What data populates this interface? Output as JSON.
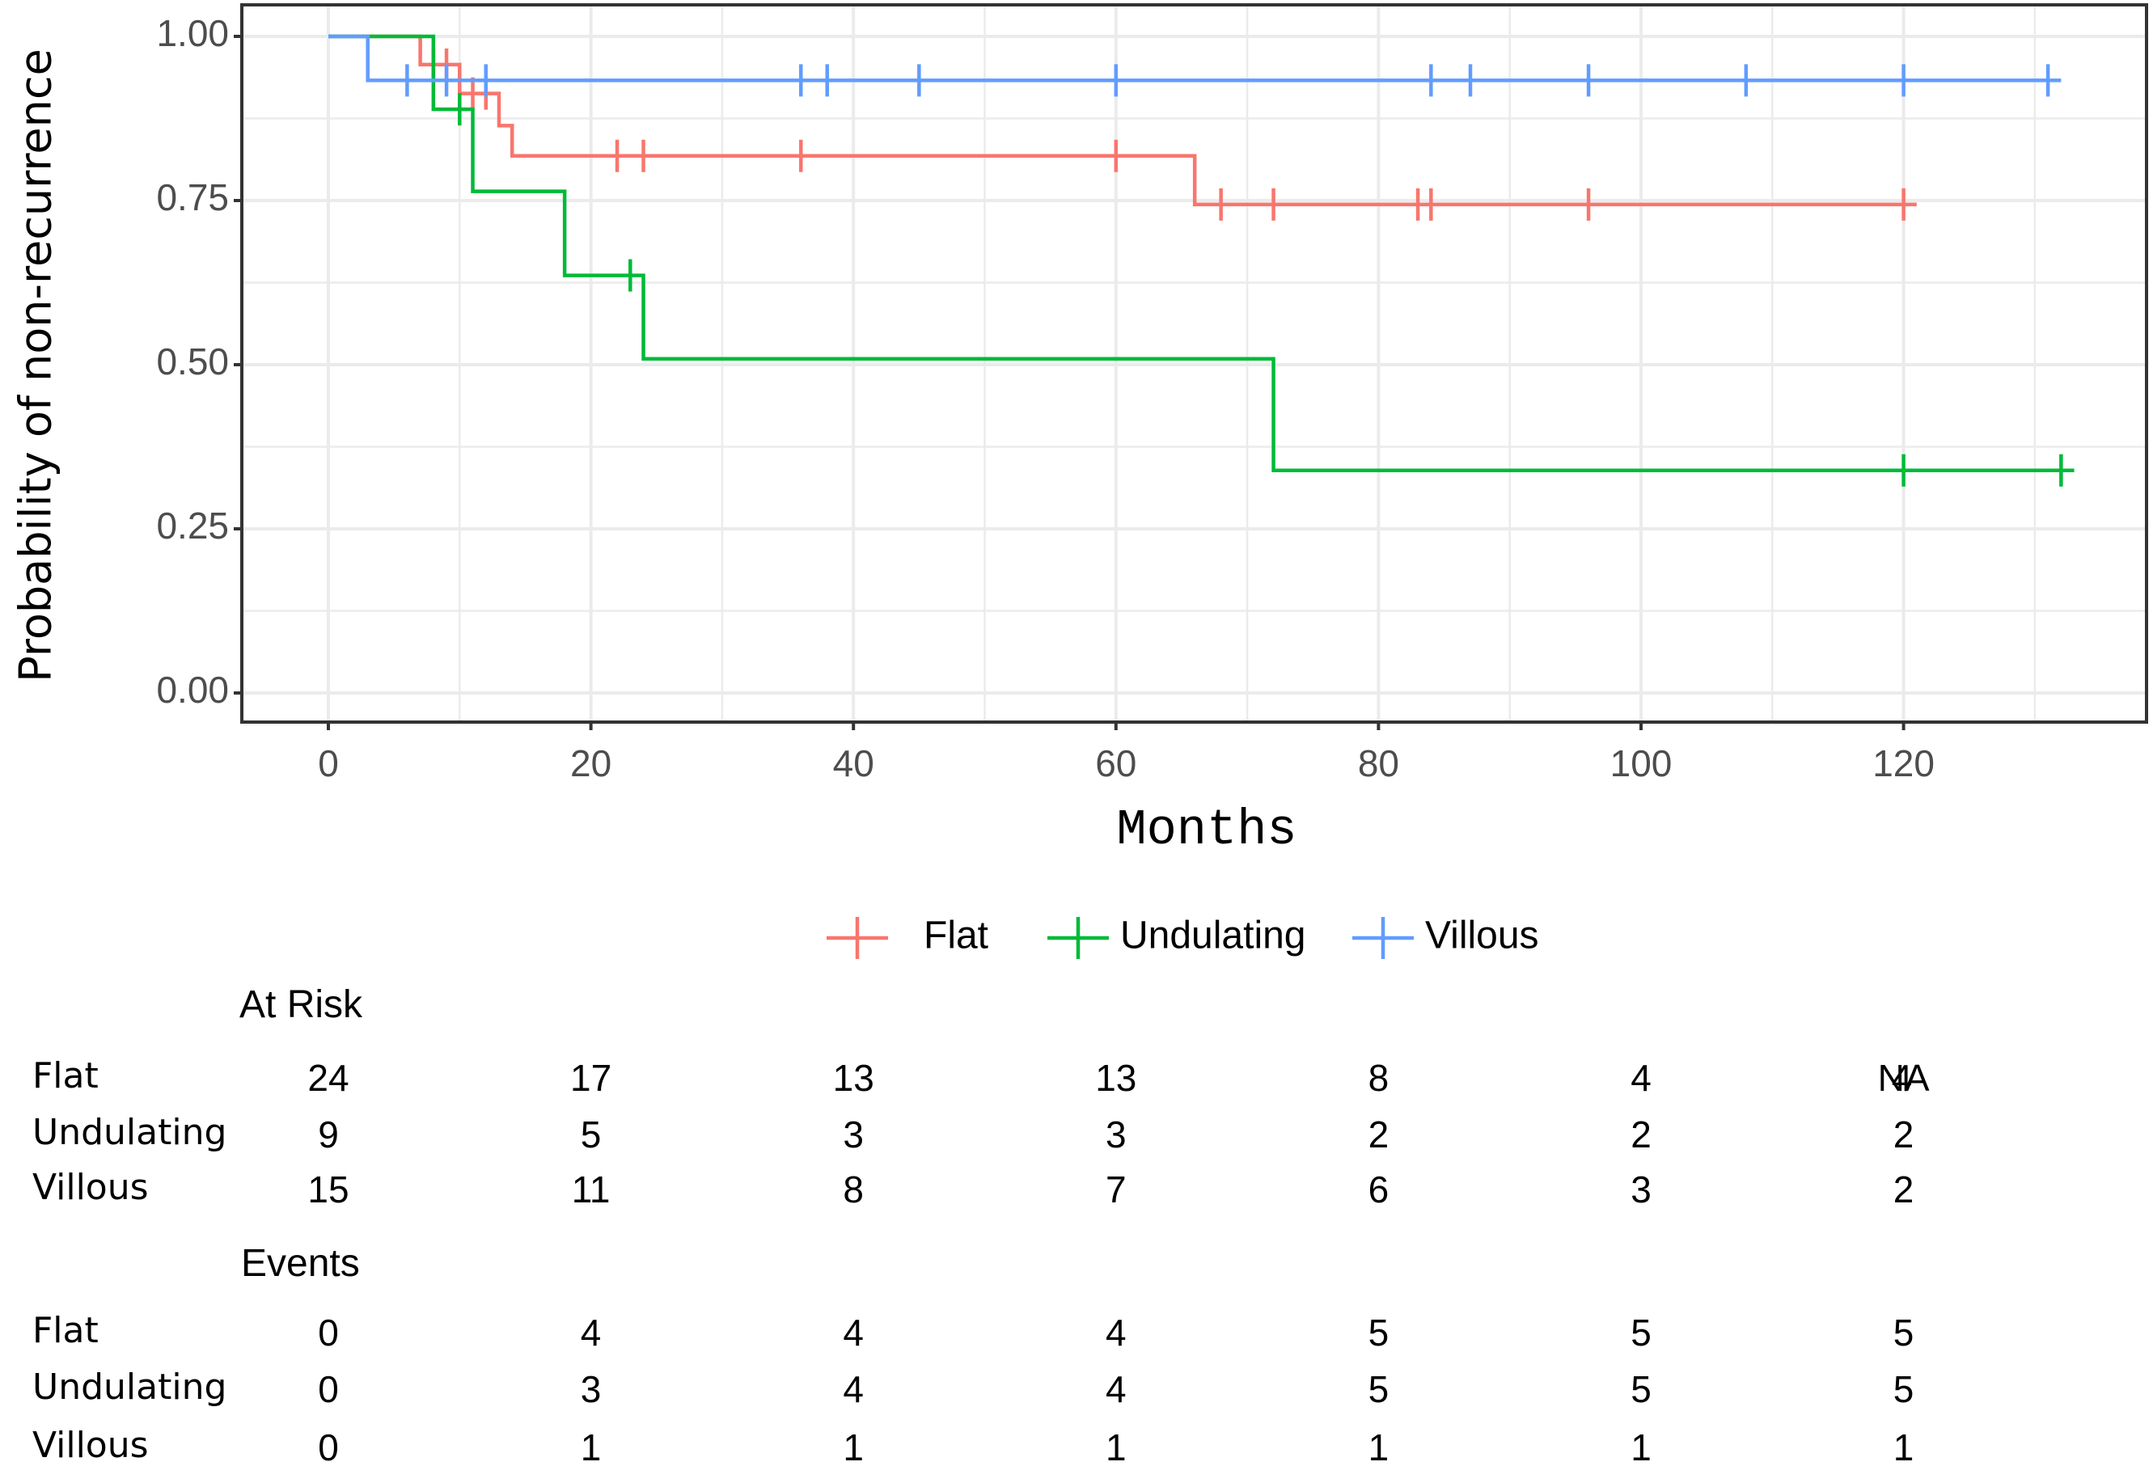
{
  "chart_data": {
    "type": "line",
    "subtype": "kaplan-meier step",
    "title": "",
    "xlabel": "Months",
    "ylabel": "Probability of non-recurrence",
    "xlim": [
      -6.6,
      138
    ],
    "ylim": [
      -0.045,
      1.05
    ],
    "x_ticks": [
      0,
      20,
      40,
      60,
      80,
      100,
      120
    ],
    "x_tick_labels": [
      "0",
      "20",
      "40",
      "60",
      "80",
      "100",
      "120"
    ],
    "y_ticks": [
      0,
      0.25,
      0.5,
      0.75,
      1.0
    ],
    "y_tick_labels": [
      "0.00",
      "0.25",
      "0.50",
      "0.75",
      "1.00"
    ],
    "grid": true,
    "legend_position": "bottom",
    "series": [
      {
        "name": "Flat",
        "color": "#F8766D",
        "steps": [
          [
            0,
            1.0
          ],
          [
            7,
            0.957
          ],
          [
            10,
            0.913
          ],
          [
            13,
            0.864
          ],
          [
            14,
            0.818
          ],
          [
            66,
            0.744
          ],
          [
            121,
            0.744
          ]
        ],
        "censor_times": [
          8,
          9,
          11,
          12,
          22,
          24,
          36,
          60,
          68,
          72,
          83,
          84,
          96,
          120
        ]
      },
      {
        "name": "Undulating",
        "color": "#00BA38",
        "steps": [
          [
            0,
            1.0
          ],
          [
            8,
            0.889
          ],
          [
            11,
            0.764
          ],
          [
            18,
            0.636
          ],
          [
            24,
            0.509
          ],
          [
            72,
            0.339
          ],
          [
            133,
            0.339
          ]
        ],
        "censor_times": [
          10,
          23,
          120,
          132
        ]
      },
      {
        "name": "Villous",
        "color": "#619CFF",
        "steps": [
          [
            0,
            1.0
          ],
          [
            3,
            0.933
          ],
          [
            132,
            0.933
          ]
        ],
        "censor_times": [
          6,
          9,
          12,
          36,
          38,
          45,
          60,
          84,
          87,
          96,
          108,
          120,
          131
        ]
      }
    ]
  },
  "legend": {
    "items": [
      {
        "label": "Flat",
        "color": "#F8766D"
      },
      {
        "label": "Undulating",
        "color": "#00BA38"
      },
      {
        "label": "Villous",
        "color": "#619CFF"
      }
    ]
  },
  "risk_table": {
    "title": "At Risk",
    "time_points": [
      0,
      20,
      40,
      60,
      80,
      100,
      120
    ],
    "rows": [
      {
        "label": "Flat",
        "values": [
          "24",
          "17",
          "13",
          "13",
          "8",
          "4",
          "NA"
        ]
      },
      {
        "label": "Undulating",
        "values": [
          "9",
          "5",
          "3",
          "3",
          "2",
          "2",
          "2"
        ]
      },
      {
        "label": "Villous",
        "values": [
          "15",
          "11",
          "8",
          "7",
          "6",
          "3",
          "2"
        ]
      }
    ],
    "overlap_glyph_at_last_flat": "4"
  },
  "events_table": {
    "title": "Events",
    "time_points": [
      0,
      20,
      40,
      60,
      80,
      100,
      120
    ],
    "rows": [
      {
        "label": "Flat",
        "values": [
          "0",
          "4",
          "4",
          "4",
          "5",
          "5",
          "5"
        ]
      },
      {
        "label": "Undulating",
        "values": [
          "0",
          "3",
          "4",
          "4",
          "5",
          "5",
          "5"
        ]
      },
      {
        "label": "Villous",
        "values": [
          "0",
          "1",
          "1",
          "1",
          "1",
          "1",
          "1"
        ]
      }
    ]
  }
}
